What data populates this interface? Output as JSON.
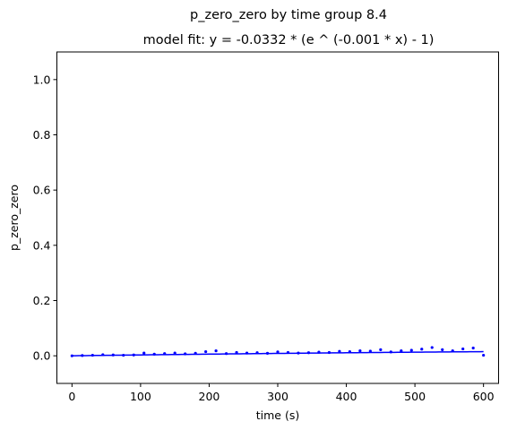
{
  "chart_data": {
    "type": "scatter",
    "title": "p_zero_zero by time group 8.4",
    "subtitle": "model fit: y = -0.0332 * (e ^ (-0.001 * x) - 1)",
    "xlabel": "time (s)",
    "ylabel": "p_zero_zero",
    "xlim": [
      -22,
      622
    ],
    "ylim": [
      -0.1,
      1.1
    ],
    "xticks": [
      0,
      100,
      200,
      300,
      400,
      500,
      600
    ],
    "yticks": [
      0.0,
      0.2,
      0.4,
      0.6,
      0.8,
      1.0
    ],
    "ytick_labels": [
      "0.0",
      "0.2",
      "0.4",
      "0.6",
      "0.8",
      "1.0"
    ],
    "grid": false,
    "point_color": "#0000ff",
    "fit_color": "#0000ff",
    "fit": {
      "a": -0.0332,
      "b": -0.001,
      "x_range": [
        0,
        600
      ]
    },
    "series": [
      {
        "x": [
          0,
          15,
          30,
          45,
          60,
          75,
          90,
          105,
          120,
          135,
          150,
          165,
          180,
          195,
          210,
          225,
          240,
          255,
          270,
          285,
          300,
          315,
          330,
          345,
          360,
          375,
          390,
          405,
          420,
          435,
          450,
          465,
          480,
          495,
          510,
          525,
          540,
          555,
          570,
          585,
          600
        ],
        "y": [
          0.0,
          0.001,
          0.002,
          0.004,
          0.003,
          0.002,
          0.003,
          0.01,
          0.006,
          0.008,
          0.01,
          0.007,
          0.009,
          0.015,
          0.018,
          0.008,
          0.012,
          0.01,
          0.011,
          0.009,
          0.014,
          0.012,
          0.01,
          0.011,
          0.013,
          0.012,
          0.016,
          0.015,
          0.018,
          0.017,
          0.022,
          0.014,
          0.018,
          0.02,
          0.024,
          0.03,
          0.022,
          0.018,
          0.025,
          0.028,
          0.002
        ]
      }
    ]
  }
}
